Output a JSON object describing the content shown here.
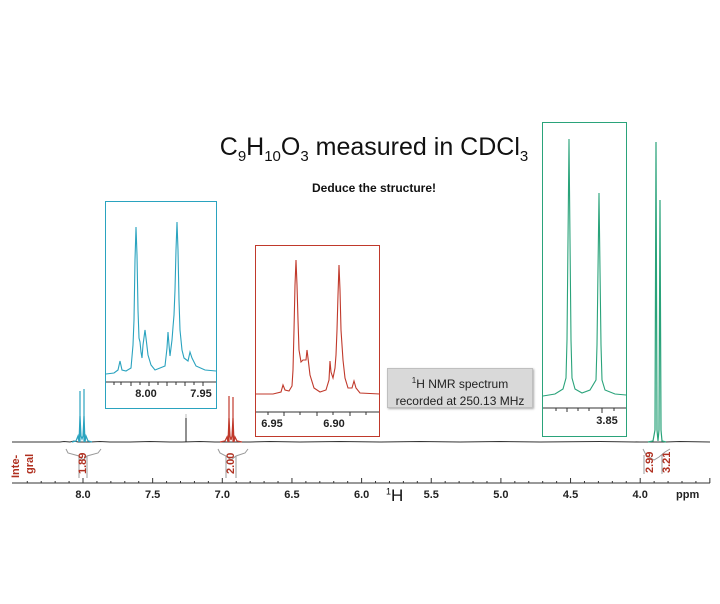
{
  "title": {
    "formula_parts": [
      {
        "t": "C"
      },
      {
        "s": "9"
      },
      {
        "t": "H"
      },
      {
        "s": "10"
      },
      {
        "t": "O"
      },
      {
        "s": "3"
      },
      {
        "t": " measured in CDCl"
      },
      {
        "s": "3"
      }
    ],
    "subtitle": "Deduce the structure!"
  },
  "infobox": {
    "nucleus_sup": "1",
    "line1_rest": "H NMR spectrum",
    "line2": "recorded at 250.13 MHz"
  },
  "axis": {
    "unit": "ppm",
    "nucleus_sup": "1",
    "nucleus": "H",
    "ticks": [
      "8.0",
      "7.5",
      "7.0",
      "6.5",
      "6.0",
      "5.5",
      "5.0",
      "4.5",
      "4.0"
    ]
  },
  "integral": {
    "label_line1": "Inte-",
    "label_line2": "gral",
    "values": [
      "1.89",
      "2.00",
      "2.99",
      "3.21"
    ]
  },
  "insets": [
    {
      "name": "aromatic-downfield",
      "color": "#2aa3bf",
      "ticks": [
        "8.00",
        "7.95"
      ]
    },
    {
      "name": "aromatic-upfield",
      "color": "#c0392b",
      "ticks": [
        "6.95",
        "6.90"
      ]
    },
    {
      "name": "methoxy-methyl",
      "color": "#2aa37a",
      "ticks": [
        "3.85"
      ]
    }
  ],
  "colors": {
    "cyan": "#2aa3bf",
    "red": "#c0392b",
    "green": "#2aa37a",
    "integral": "#b03020",
    "baseline": "#222222"
  },
  "chart_data": {
    "type": "line",
    "title": "C9H10O3 measured in CDCl3",
    "subtitle": "Deduce the structure!",
    "annotation": "1H NMR spectrum recorded at 250.13 MHz",
    "xlabel": "1H (ppm)",
    "ylabel": "",
    "xlim": [
      8.45,
      3.5
    ],
    "x_reversed": true,
    "x_ticks": [
      8.0,
      7.5,
      7.0,
      6.5,
      6.0,
      5.5,
      5.0,
      4.5,
      4.0
    ],
    "peaks": [
      {
        "shift_ppm": 7.99,
        "multiplicity": "AA'XX' (doublet-like)",
        "integral": 1.89,
        "color": "cyan"
      },
      {
        "shift_ppm": 7.26,
        "multiplicity": "singlet (CHCl3 solvent)",
        "integral": null,
        "color": "black"
      },
      {
        "shift_ppm": 6.91,
        "multiplicity": "AA'XX' (doublet-like)",
        "integral": 2.0,
        "color": "red"
      },
      {
        "shift_ppm": 3.87,
        "multiplicity": "singlet",
        "integral": 2.99,
        "color": "green"
      },
      {
        "shift_ppm": 3.85,
        "multiplicity": "singlet",
        "integral": 3.21,
        "color": "green"
      }
    ],
    "insets": [
      {
        "range_ppm": [
          8.01,
          7.94
        ],
        "ticks": [
          8.0,
          7.95
        ]
      },
      {
        "range_ppm": [
          6.96,
          6.87
        ],
        "ticks": [
          6.95,
          6.9
        ]
      },
      {
        "range_ppm": [
          3.88,
          3.84
        ],
        "ticks": [
          3.85
        ]
      }
    ],
    "grid": false,
    "legend": null
  }
}
